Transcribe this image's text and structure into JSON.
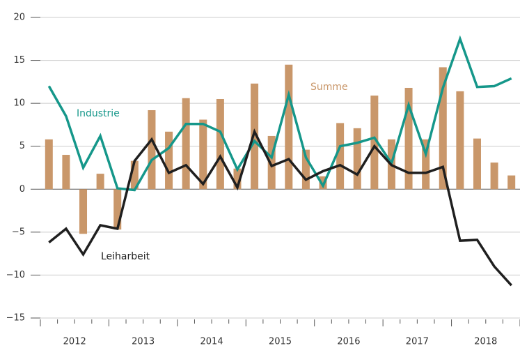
{
  "chart_data": {
    "type": "bar_line",
    "years": [
      "2012",
      "2013",
      "2014",
      "2015",
      "2016",
      "2017",
      "2018"
    ],
    "categories": [
      null,
      null,
      null,
      null,
      null,
      null,
      null,
      null,
      null,
      null,
      null,
      null,
      null,
      null,
      null,
      null,
      null,
      null,
      null,
      null,
      null,
      null,
      null,
      null,
      null,
      null,
      null,
      null
    ],
    "series": [
      {
        "name": "Summe",
        "kind": "bar",
        "color": "#c9976a",
        "values": [
          5.8,
          4.0,
          -5.2,
          1.8,
          -4.7,
          3.3,
          9.2,
          6.7,
          10.6,
          8.1,
          10.5,
          2.4,
          12.3,
          6.2,
          14.5,
          4.6,
          1.5,
          7.7,
          7.1,
          10.9,
          5.8,
          11.8,
          5.8,
          14.2,
          11.4,
          5.9,
          3.1,
          1.6
        ]
      },
      {
        "name": "Industrie",
        "kind": "line",
        "color": "#15978a",
        "values": [
          12.0,
          8.5,
          2.5,
          6.2,
          0.1,
          -0.1,
          3.4,
          4.8,
          7.6,
          7.6,
          6.7,
          2.3,
          5.6,
          3.7,
          11.0,
          3.7,
          0.4,
          5.0,
          5.4,
          6.0,
          3.0,
          9.8,
          4.1,
          11.8,
          17.5,
          11.9,
          12.0,
          12.9
        ]
      },
      {
        "name": "Leiharbeit",
        "kind": "line",
        "color": "#1f1f1f",
        "values": [
          -6.2,
          -4.6,
          -7.6,
          -4.2,
          -4.6,
          3.3,
          5.8,
          1.9,
          2.8,
          0.6,
          3.8,
          0.2,
          6.7,
          2.7,
          3.5,
          1.1,
          2.1,
          2.8,
          1.7,
          5.0,
          2.8,
          1.9,
          1.9,
          2.6,
          -6.0,
          -5.9,
          -9.0,
          -11.2
        ]
      }
    ],
    "ylim": [
      -15,
      20
    ],
    "yticks": [
      {
        "value": -15,
        "label": "−15"
      },
      {
        "value": -10,
        "label": "−10"
      },
      {
        "value": -5,
        "label": "−5"
      },
      0,
      5,
      10,
      15,
      20
    ],
    "grid": true
  }
}
